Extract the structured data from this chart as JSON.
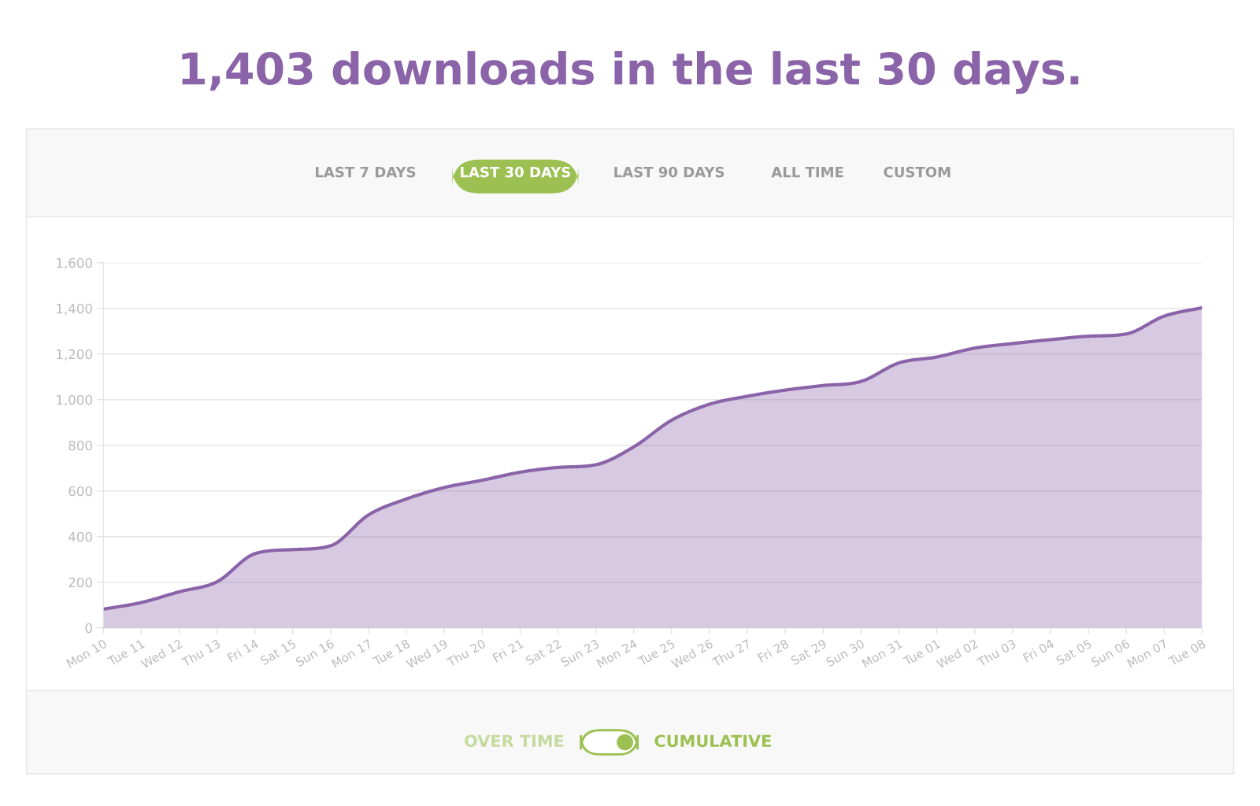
{
  "chart_data": {
    "type": "area",
    "title": "1,403 downloads in the last 30 days.",
    "categories": [
      "Mon 10",
      "Tue 11",
      "Wed 12",
      "Thu 13",
      "Fri 14",
      "Sat 15",
      "Sun 16",
      "Mon 17",
      "Tue 18",
      "Wed 19",
      "Thu 20",
      "Fri 21",
      "Sat 22",
      "Sun 23",
      "Mon 24",
      "Tue 25",
      "Wed 26",
      "Thu 27",
      "Fri 28",
      "Sat 29",
      "Sun 30",
      "Mon 31",
      "Tue 01",
      "Wed 02",
      "Thu 03",
      "Fri 04",
      "Sat 05",
      "Sun 06",
      "Mon 07",
      "Tue 08"
    ],
    "series": [
      {
        "color": "#8a63a8",
        "values": [
          82,
          111,
          158,
          202,
          325,
          343,
          360,
          495,
          565,
          615,
          647,
          682,
          703,
          715,
          793,
          910,
          980,
          1015,
          1042,
          1062,
          1080,
          1161,
          1187,
          1226,
          1246,
          1263,
          1278,
          1288,
          1366,
          1403
        ]
      }
    ],
    "ylim": [
      0,
      1600
    ],
    "yticks": [
      {
        "value": 0,
        "label": "0"
      },
      {
        "value": 200,
        "label": "200"
      },
      {
        "value": 400,
        "label": "400"
      },
      {
        "value": 600,
        "label": "600"
      },
      {
        "value": 800,
        "label": "800"
      },
      {
        "value": 1000,
        "label": "1,000"
      },
      {
        "value": 1200,
        "label": "1,200"
      },
      {
        "value": 1400,
        "label": "1,400"
      },
      {
        "value": 1600,
        "label": "1,600"
      }
    ],
    "grid": "y",
    "marker": "none",
    "line_style": "solid",
    "annotations": [
      "LAST 7 DAYS",
      "LAST 30 DAYS",
      "LAST 90 DAYS",
      "ALL TIME",
      "CUSTOM",
      "OVER TIME",
      "CUMULATIVE"
    ]
  }
}
